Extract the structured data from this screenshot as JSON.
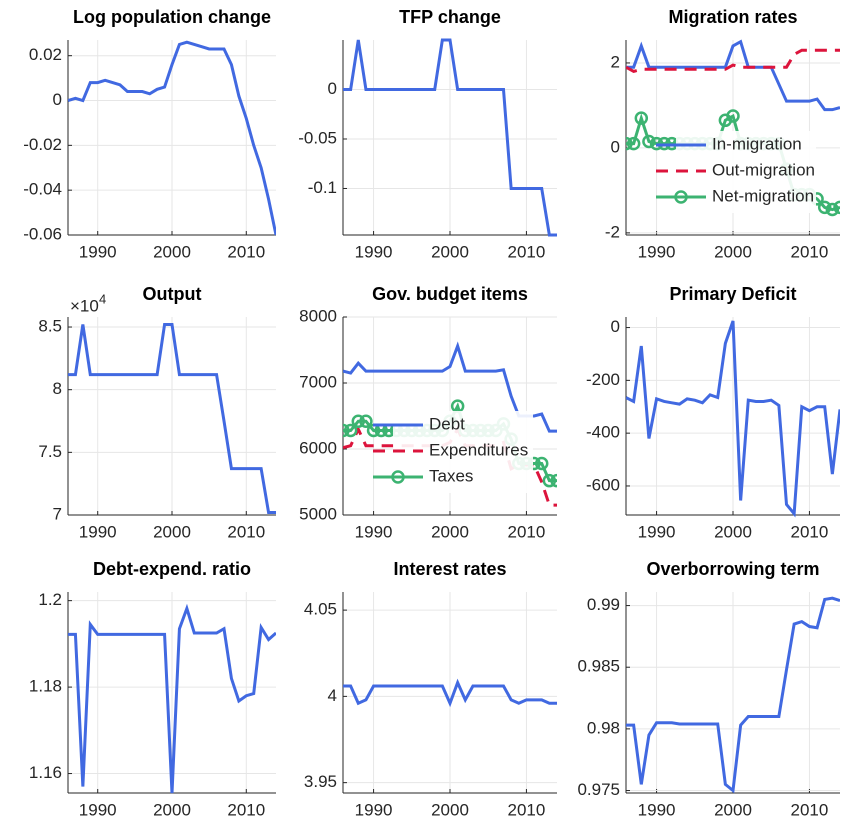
{
  "chart_data": [
    {
      "type": "line",
      "title": "Log population change",
      "x": [
        1986,
        1987,
        1988,
        1989,
        1990,
        1991,
        1992,
        1993,
        1994,
        1995,
        1996,
        1997,
        1998,
        1999,
        2000,
        2001,
        2002,
        2003,
        2004,
        2005,
        2006,
        2007,
        2008,
        2009,
        2010,
        2011,
        2012,
        2013,
        2014
      ],
      "values": [
        0,
        0.001,
        0,
        0.008,
        0.008,
        0.009,
        0.008,
        0.007,
        0.004,
        0.004,
        0.004,
        0.003,
        0.005,
        0.006,
        0.016,
        0.025,
        0.026,
        0.025,
        0.024,
        0.023,
        0.023,
        0.023,
        0.016,
        0.002,
        -0.008,
        -0.02,
        -0.03,
        -0.044,
        -0.06
      ],
      "color": "#4169e1",
      "xlim": [
        1986,
        2014
      ],
      "xticks": [
        1990,
        2000,
        2010
      ],
      "ylim": [
        -0.06,
        0.027
      ],
      "yticks": [
        -0.06,
        -0.04,
        -0.02,
        0,
        0.02
      ],
      "grid": true
    },
    {
      "type": "line",
      "title": "TFP change",
      "x": [
        1986,
        1987,
        1988,
        1989,
        1990,
        1991,
        1992,
        1993,
        1994,
        1995,
        1996,
        1997,
        1998,
        1999,
        2000,
        2001,
        2002,
        2003,
        2004,
        2005,
        2006,
        2007,
        2008,
        2009,
        2010,
        2011,
        2012,
        2013,
        2014
      ],
      "values": [
        0,
        0,
        0.05,
        0,
        0,
        0,
        0,
        0,
        0,
        0,
        0,
        0,
        0,
        0.05,
        0.05,
        0,
        0,
        0,
        0,
        0,
        0,
        0,
        -0.1,
        -0.1,
        -0.1,
        -0.1,
        -0.1,
        -0.147,
        -0.147
      ],
      "color": "#4169e1",
      "xlim": [
        1986,
        2014
      ],
      "xticks": [
        1990,
        2000,
        2010
      ],
      "ylim": [
        -0.147,
        0.05
      ],
      "yticks": [
        -0.1,
        -0.05,
        0
      ],
      "grid": true
    },
    {
      "type": "line",
      "title": "Migration rates",
      "x": [
        1986,
        1987,
        1988,
        1989,
        1990,
        1991,
        1992,
        1993,
        1994,
        1995,
        1996,
        1997,
        1998,
        1999,
        2000,
        2001,
        2002,
        2003,
        2004,
        2005,
        2006,
        2007,
        2008,
        2009,
        2010,
        2011,
        2012,
        2013,
        2014
      ],
      "series": [
        {
          "name": "In-migration",
          "color": "#4169e1",
          "line_style": "solid",
          "values": [
            1.9,
            1.9,
            2.4,
            1.9,
            1.9,
            1.9,
            1.9,
            1.9,
            1.9,
            1.9,
            1.9,
            1.9,
            1.9,
            1.9,
            2.4,
            2.5,
            1.9,
            1.9,
            1.9,
            1.9,
            1.5,
            1.1,
            1.1,
            1.1,
            1.1,
            1.15,
            0.9,
            0.9,
            0.95
          ]
        },
        {
          "name": "Out-migration",
          "color": "#dc143c",
          "line_style": "dashed",
          "values": [
            1.9,
            1.8,
            1.85,
            1.85,
            1.85,
            1.85,
            1.85,
            1.85,
            1.85,
            1.85,
            1.85,
            1.85,
            1.85,
            1.85,
            1.95,
            1.9,
            1.9,
            1.9,
            1.9,
            1.9,
            1.9,
            1.9,
            2.2,
            2.3,
            2.3,
            2.3,
            2.3,
            2.3,
            2.3
          ]
        },
        {
          "name": "Net-migration",
          "color": "#3cb371",
          "line_style": "solid",
          "marker": "circle",
          "values": [
            0.1,
            0.1,
            0.7,
            0.15,
            0.1,
            0.1,
            0.1,
            0.1,
            0.1,
            0.1,
            0.1,
            0.1,
            0.1,
            0.65,
            0.75,
            0.1,
            0.1,
            0.1,
            0.1,
            0.1,
            0.1,
            -0.5,
            -1.1,
            -1.1,
            -1.1,
            -1.2,
            -1.4,
            -1.45,
            -1.4
          ]
        }
      ],
      "xlim": [
        1986,
        2014
      ],
      "xticks": [
        1990,
        2000,
        2010
      ],
      "ylim": [
        -2.05,
        2.54
      ],
      "yticks": [
        -2,
        0,
        2
      ],
      "grid": true,
      "legend_location": "southeast"
    },
    {
      "type": "line",
      "title": "Output",
      "y_multiplier": "×10",
      "y_multiplier_exponent": "4",
      "x": [
        1986,
        1987,
        1988,
        1989,
        1990,
        1991,
        1992,
        1993,
        1994,
        1995,
        1996,
        1997,
        1998,
        1999,
        2000,
        2001,
        2002,
        2003,
        2004,
        2005,
        2006,
        2007,
        2008,
        2009,
        2010,
        2011,
        2012,
        2013,
        2014
      ],
      "values": [
        8.12,
        8.12,
        8.52,
        8.12,
        8.12,
        8.12,
        8.12,
        8.12,
        8.12,
        8.12,
        8.12,
        8.12,
        8.12,
        8.52,
        8.52,
        8.12,
        8.12,
        8.12,
        8.12,
        8.12,
        8.12,
        7.75,
        7.37,
        7.37,
        7.37,
        7.37,
        7.37,
        7.02,
        7.02
      ],
      "color": "#4169e1",
      "xlim": [
        1986,
        2014
      ],
      "xticks": [
        1990,
        2000,
        2010
      ],
      "ylim": [
        7,
        8.58
      ],
      "yticks": [
        7,
        7.5,
        8,
        8.5
      ],
      "grid": true
    },
    {
      "type": "line",
      "title": "Gov. budget items",
      "x": [
        1986,
        1987,
        1988,
        1989,
        1990,
        1991,
        1992,
        1993,
        1994,
        1995,
        1996,
        1997,
        1998,
        1999,
        2000,
        2001,
        2002,
        2003,
        2004,
        2005,
        2006,
        2007,
        2008,
        2009,
        2010,
        2011,
        2012,
        2013,
        2014
      ],
      "series": [
        {
          "name": "Debt",
          "color": "#4169e1",
          "line_style": "solid",
          "values": [
            7180,
            7150,
            7300,
            7180,
            7180,
            7180,
            7180,
            7180,
            7180,
            7180,
            7180,
            7180,
            7180,
            7180,
            7250,
            7560,
            7180,
            7180,
            7180,
            7180,
            7180,
            7200,
            6800,
            6500,
            6500,
            6500,
            6530,
            6270,
            6270
          ]
        },
        {
          "name": "Expenditures",
          "color": "#dc143c",
          "line_style": "dashed",
          "values": [
            6020,
            6050,
            6300,
            6050,
            6050,
            6050,
            6050,
            6050,
            6050,
            6050,
            6050,
            6050,
            6050,
            6050,
            6100,
            6300,
            6050,
            6050,
            6050,
            6050,
            6050,
            6100,
            5700,
            5760,
            5760,
            5760,
            5500,
            5150,
            5150
          ]
        },
        {
          "name": "Taxes",
          "color": "#3cb371",
          "line_style": "solid",
          "marker": "circle",
          "values": [
            6280,
            6280,
            6420,
            6420,
            6280,
            6280,
            6280,
            6280,
            6280,
            6280,
            6280,
            6280,
            6280,
            6280,
            6420,
            6650,
            6280,
            6280,
            6280,
            6280,
            6280,
            6380,
            6150,
            5780,
            5780,
            5780,
            5780,
            5520,
            5520
          ]
        }
      ],
      "xlim": [
        1986,
        2014
      ],
      "xticks": [
        1990,
        2000,
        2010
      ],
      "ylim": [
        5000,
        8000
      ],
      "yticks": [
        5000,
        6000,
        7000,
        8000
      ],
      "grid": true,
      "legend_location": "southeast"
    },
    {
      "type": "line",
      "title": "Primary Deficit",
      "x": [
        1986,
        1987,
        1988,
        1989,
        1990,
        1991,
        1992,
        1993,
        1994,
        1995,
        1996,
        1997,
        1998,
        1999,
        2000,
        2001,
        2002,
        2003,
        2004,
        2005,
        2006,
        2007,
        2008,
        2009,
        2010,
        2011,
        2012,
        2013,
        2014
      ],
      "values": [
        -265,
        -280,
        -70,
        -420,
        -270,
        -280,
        -285,
        -290,
        -270,
        -275,
        -285,
        -255,
        -265,
        -60,
        25,
        -655,
        -275,
        -280,
        -280,
        -275,
        -295,
        -670,
        -705,
        -300,
        -315,
        -300,
        -300,
        -555,
        -310
      ],
      "color": "#4169e1",
      "xlim": [
        1986,
        2014
      ],
      "xticks": [
        1990,
        2000,
        2010
      ],
      "ylim": [
        -710,
        40
      ],
      "yticks": [
        -600,
        -400,
        -200,
        0
      ],
      "grid": true
    },
    {
      "type": "line",
      "title": "Debt-expend. ratio",
      "x": [
        1986,
        1987,
        1988,
        1989,
        1990,
        1991,
        1992,
        1993,
        1994,
        1995,
        1996,
        1997,
        1998,
        1999,
        2000,
        2001,
        2002,
        2003,
        2004,
        2005,
        2006,
        2007,
        2008,
        2009,
        2010,
        2011,
        2012,
        2013,
        2014
      ],
      "values": [
        1.1922,
        1.1922,
        1.157,
        1.1945,
        1.1922,
        1.1922,
        1.1922,
        1.1922,
        1.1922,
        1.1922,
        1.1922,
        1.1922,
        1.1922,
        1.1922,
        1.1555,
        1.1935,
        1.1982,
        1.1925,
        1.1925,
        1.1925,
        1.1925,
        1.1935,
        1.182,
        1.1768,
        1.178,
        1.1785,
        1.1938,
        1.191,
        1.1925
      ],
      "color": "#4169e1",
      "xlim": [
        1986,
        2014
      ],
      "xticks": [
        1990,
        2000,
        2010
      ],
      "ylim": [
        1.1555,
        1.202
      ],
      "yticks": [
        1.16,
        1.18,
        1.2
      ],
      "grid": true
    },
    {
      "type": "line",
      "title": "Interest rates",
      "x": [
        1986,
        1987,
        1988,
        1989,
        1990,
        1991,
        1992,
        1993,
        1994,
        1995,
        1996,
        1997,
        1998,
        1999,
        2000,
        2001,
        2002,
        2003,
        2004,
        2005,
        2006,
        2007,
        2008,
        2009,
        2010,
        2011,
        2012,
        2013,
        2014
      ],
      "values": [
        4.006,
        4.006,
        3.996,
        3.998,
        4.006,
        4.006,
        4.006,
        4.006,
        4.006,
        4.006,
        4.006,
        4.006,
        4.006,
        4.006,
        3.996,
        4.008,
        3.998,
        4.006,
        4.006,
        4.006,
        4.006,
        4.006,
        3.998,
        3.996,
        3.998,
        3.998,
        3.998,
        3.996,
        3.996
      ],
      "color": "#4169e1",
      "xlim": [
        1986,
        2014
      ],
      "xticks": [
        1990,
        2000,
        2010
      ],
      "ylim": [
        3.944,
        4.0605
      ],
      "yticks": [
        3.95,
        4,
        4.05
      ],
      "grid": true
    },
    {
      "type": "line",
      "title": "Overborrowing term",
      "x": [
        1986,
        1987,
        1988,
        1989,
        1990,
        1991,
        1992,
        1993,
        1994,
        1995,
        1996,
        1997,
        1998,
        1999,
        2000,
        2001,
        2002,
        2003,
        2004,
        2005,
        2006,
        2007,
        2008,
        2009,
        2010,
        2011,
        2012,
        2013,
        2014
      ],
      "values": [
        0.9803,
        0.9803,
        0.9755,
        0.9795,
        0.9805,
        0.9805,
        0.9805,
        0.9804,
        0.9804,
        0.9804,
        0.9804,
        0.9804,
        0.9804,
        0.9755,
        0.975,
        0.9803,
        0.981,
        0.981,
        0.981,
        0.981,
        0.981,
        0.9848,
        0.9885,
        0.9887,
        0.9883,
        0.9882,
        0.9905,
        0.9906,
        0.9904
      ],
      "color": "#4169e1",
      "xlim": [
        1986,
        2014
      ],
      "xticks": [
        1990,
        2000,
        2010
      ],
      "ylim": [
        0.9748,
        0.9911
      ],
      "yticks": [
        0.975,
        0.98,
        0.985,
        0.99
      ],
      "grid": true
    }
  ]
}
